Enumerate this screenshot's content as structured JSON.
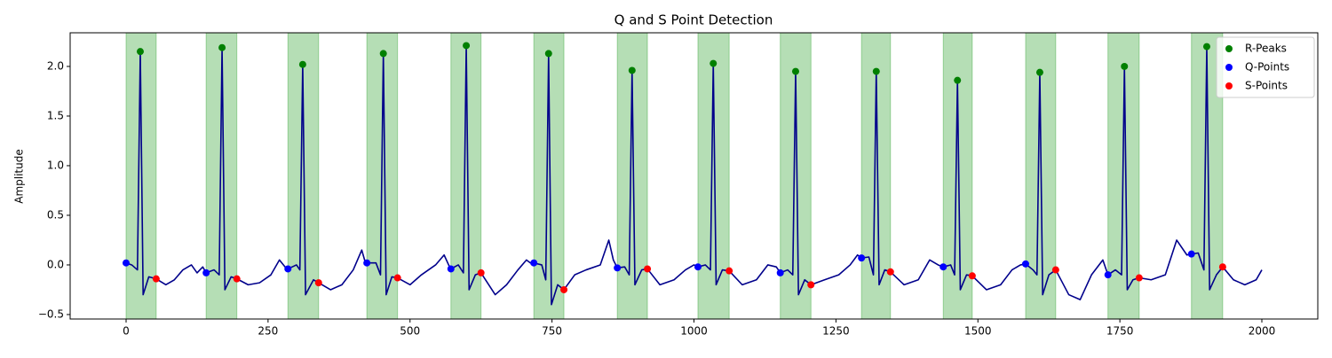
{
  "chart_data": {
    "type": "line",
    "title": "Q and S Point Detection",
    "y_label": "Amplitude",
    "xlim": [
      -98.5,
      2098.5
    ],
    "ylim": [
      -0.545,
      2.339
    ],
    "xticks": [
      0,
      250,
      500,
      750,
      1000,
      1250,
      1500,
      1750,
      2000
    ],
    "yticks": [
      {
        "value": -0.5,
        "label": "−0.5"
      },
      {
        "value": 0,
        "label": "0.0"
      },
      {
        "value": 0.5,
        "label": "0.5"
      },
      {
        "value": 1,
        "label": "1.0"
      },
      {
        "value": 1.5,
        "label": "1.5"
      },
      {
        "value": 2,
        "label": "2.0"
      }
    ],
    "legend": "upper right",
    "region_color": "#2ca02c",
    "signal": {
      "color": "#00008b",
      "x": [
        0,
        10,
        20,
        25,
        30,
        40,
        53,
        70,
        85,
        100,
        115,
        125,
        135,
        141,
        155,
        164,
        169,
        174,
        185,
        195,
        215,
        235,
        255,
        270,
        280,
        285,
        300,
        306,
        311,
        316,
        330,
        339,
        360,
        380,
        400,
        415,
        420,
        424,
        440,
        448,
        453,
        458,
        468,
        478,
        500,
        520,
        545,
        560,
        568,
        572,
        585,
        594,
        599,
        604,
        615,
        625,
        650,
        670,
        690,
        705,
        712,
        718,
        732,
        739,
        744,
        749,
        760,
        771,
        790,
        810,
        835,
        850,
        858,
        865,
        878,
        886,
        891,
        896,
        908,
        918,
        940,
        965,
        985,
        1000,
        1007,
        1020,
        1029,
        1034,
        1039,
        1050,
        1062,
        1085,
        1110,
        1130,
        1145,
        1152,
        1165,
        1174,
        1179,
        1184,
        1195,
        1206,
        1230,
        1255,
        1275,
        1288,
        1295,
        1308,
        1316,
        1321,
        1326,
        1336,
        1346,
        1370,
        1395,
        1415,
        1430,
        1439,
        1452,
        1459,
        1464,
        1469,
        1480,
        1490,
        1515,
        1540,
        1560,
        1575,
        1584,
        1597,
        1604,
        1609,
        1614,
        1625,
        1637,
        1660,
        1680,
        1700,
        1720,
        1729,
        1742,
        1753,
        1758,
        1763,
        1773,
        1784,
        1805,
        1830,
        1850,
        1868,
        1876,
        1888,
        1898,
        1903,
        1908,
        1920,
        1931,
        1950,
        1970,
        1990,
        2000
      ],
      "values": [
        0.02,
        0,
        -0.05,
        2.15,
        -0.3,
        -0.12,
        -0.14,
        -0.2,
        -0.15,
        -0.05,
        0,
        -0.08,
        -0.02,
        -0.08,
        -0.05,
        -0.1,
        2.19,
        -0.25,
        -0.12,
        -0.14,
        -0.2,
        -0.18,
        -0.1,
        0.05,
        -0.02,
        -0.04,
        0,
        -0.05,
        2.02,
        -0.3,
        -0.15,
        -0.18,
        -0.25,
        -0.2,
        -0.05,
        0.15,
        0.05,
        0.02,
        0.02,
        -0.1,
        2.13,
        -0.3,
        -0.12,
        -0.13,
        -0.2,
        -0.1,
        0,
        0.1,
        0,
        -0.04,
        0,
        -0.08,
        2.21,
        -0.25,
        -0.1,
        -0.08,
        -0.3,
        -0.2,
        -0.05,
        0.05,
        0.02,
        0.02,
        0,
        -0.15,
        2.13,
        -0.4,
        -0.2,
        -0.25,
        -0.1,
        -0.05,
        0,
        0.25,
        0.05,
        -0.03,
        -0.02,
        -0.1,
        1.96,
        -0.2,
        -0.05,
        -0.04,
        -0.2,
        -0.15,
        -0.05,
        0,
        -0.02,
        0,
        -0.05,
        2.03,
        -0.2,
        -0.05,
        -0.06,
        -0.2,
        -0.15,
        0,
        -0.02,
        -0.08,
        -0.05,
        -0.1,
        1.95,
        -0.3,
        -0.15,
        -0.2,
        -0.15,
        -0.1,
        0,
        0.1,
        0.07,
        0.08,
        -0.1,
        1.95,
        -0.2,
        -0.05,
        -0.07,
        -0.2,
        -0.15,
        0.05,
        0,
        -0.02,
        0,
        -0.1,
        1.86,
        -0.25,
        -0.1,
        -0.11,
        -0.25,
        -0.2,
        -0.05,
        0,
        0.01,
        -0.05,
        -0.1,
        1.94,
        -0.3,
        -0.1,
        -0.05,
        -0.3,
        -0.35,
        -0.1,
        0.05,
        -0.1,
        -0.05,
        -0.1,
        2.0,
        -0.25,
        -0.15,
        -0.13,
        -0.15,
        -0.1,
        0.25,
        0.1,
        0.11,
        0.12,
        -0.05,
        2.2,
        -0.25,
        -0.1,
        -0.02,
        -0.15,
        -0.2,
        -0.15,
        -0.05
      ]
    },
    "series": [
      {
        "name": "R-Peaks",
        "color": "#008000",
        "x": [
          25,
          169,
          311,
          453,
          599,
          744,
          891,
          1034,
          1179,
          1321,
          1464,
          1609,
          1758,
          1903
        ],
        "values": [
          2.15,
          2.19,
          2.02,
          2.13,
          2.21,
          2.13,
          1.96,
          2.03,
          1.95,
          1.95,
          1.86,
          1.94,
          2.0,
          2.2
        ]
      },
      {
        "name": "Q-Points",
        "color": "#0000ff",
        "x": [
          0,
          141,
          285,
          424,
          572,
          718,
          865,
          1007,
          1152,
          1295,
          1439,
          1584,
          1729,
          1876
        ],
        "values": [
          0.02,
          -0.08,
          -0.04,
          0.02,
          -0.04,
          0.02,
          -0.03,
          -0.02,
          -0.08,
          0.07,
          -0.02,
          0.01,
          -0.1,
          0.11
        ]
      },
      {
        "name": "S-Points",
        "color": "#ff0000",
        "x": [
          53,
          195,
          339,
          478,
          625,
          771,
          918,
          1062,
          1206,
          1346,
          1490,
          1637,
          1784,
          1931
        ],
        "values": [
          -0.14,
          -0.14,
          -0.18,
          -0.13,
          -0.08,
          -0.25,
          -0.04,
          -0.06,
          -0.2,
          -0.07,
          -0.11,
          -0.05,
          -0.13,
          -0.02
        ]
      }
    ]
  }
}
